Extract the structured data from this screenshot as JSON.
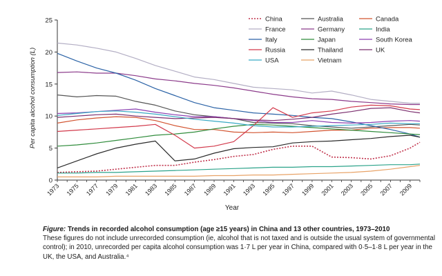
{
  "chart_data": {
    "type": "line",
    "xlabel": "Year",
    "ylabel": "Per capita alcohol consumption (L)",
    "xlim": [
      1973,
      2010
    ],
    "ylim": [
      0,
      25
    ],
    "yticks": [
      0,
      5,
      10,
      15,
      20,
      25
    ],
    "xticks": [
      1973,
      1975,
      1977,
      1979,
      1981,
      1983,
      1985,
      1987,
      1989,
      1991,
      1993,
      1995,
      1997,
      1999,
      2001,
      2003,
      2005,
      2007,
      2009
    ],
    "grid": false,
    "legend_position": "top-right",
    "x": [
      1973,
      1975,
      1977,
      1979,
      1981,
      1983,
      1985,
      1987,
      1989,
      1991,
      1993,
      1995,
      1997,
      1999,
      2001,
      2003,
      2005,
      2007,
      2009,
      2010
    ],
    "series": [
      {
        "name": "China",
        "color": "#c0304a",
        "dash": "2,2",
        "values": [
          1.2,
          1.3,
          1.4,
          1.7,
          2.0,
          2.3,
          2.3,
          2.8,
          3.2,
          3.7,
          4.0,
          4.8,
          5.3,
          5.3,
          3.6,
          3.5,
          3.3,
          3.8,
          5.0,
          5.9
        ]
      },
      {
        "name": "Australia",
        "color": "#555555",
        "values": [
          13.3,
          13.0,
          13.2,
          13.1,
          12.3,
          11.7,
          10.8,
          10.2,
          9.9,
          9.6,
          9.0,
          8.9,
          8.8,
          8.5,
          8.3,
          8.1,
          8.3,
          8.5,
          8.7,
          8.6
        ]
      },
      {
        "name": "Canada",
        "color": "#d2532f",
        "values": [
          8.9,
          9.4,
          9.7,
          9.9,
          9.8,
          9.3,
          8.5,
          7.9,
          7.9,
          7.5,
          7.4,
          7.5,
          7.4,
          7.6,
          7.8,
          7.8,
          8.1,
          8.2,
          8.2,
          8.1
        ]
      },
      {
        "name": "France",
        "color": "#b3aec4",
        "values": [
          21.4,
          21.1,
          20.6,
          20.0,
          19.0,
          17.9,
          17.0,
          16.1,
          15.7,
          15.1,
          14.5,
          14.3,
          14.1,
          13.6,
          13.9,
          13.3,
          12.6,
          12.3,
          12.0,
          12.0
        ]
      },
      {
        "name": "Germany",
        "color": "#8b3a8a",
        "values": [
          16.8,
          16.9,
          16.7,
          16.7,
          16.3,
          15.8,
          15.5,
          15.1,
          14.8,
          14.4,
          13.9,
          13.4,
          13.0,
          12.7,
          12.6,
          12.3,
          12.1,
          11.9,
          11.8,
          11.8
        ]
      },
      {
        "name": "India",
        "color": "#2aa289",
        "values": [
          1.1,
          1.1,
          1.2,
          1.2,
          1.3,
          1.4,
          1.5,
          1.6,
          1.7,
          1.8,
          1.9,
          2.0,
          2.0,
          2.1,
          2.1,
          2.2,
          2.3,
          2.4,
          2.4,
          2.5
        ]
      },
      {
        "name": "Italy",
        "color": "#2a62a6",
        "values": [
          19.8,
          18.6,
          17.5,
          16.7,
          15.6,
          14.3,
          13.2,
          12.1,
          11.3,
          10.9,
          10.5,
          10.3,
          10.1,
          9.8,
          9.6,
          9.1,
          8.5,
          7.9,
          7.2,
          6.7
        ]
      },
      {
        "name": "Japan",
        "color": "#2e8b3a",
        "values": [
          5.3,
          5.5,
          5.8,
          6.2,
          6.6,
          7.0,
          7.2,
          7.5,
          8.0,
          8.4,
          8.7,
          8.6,
          8.4,
          8.2,
          8.0,
          7.8,
          7.6,
          7.4,
          7.2,
          7.1
        ]
      },
      {
        "name": "South Korea",
        "color": "#8a3fb0",
        "values": [
          10.4,
          10.5,
          10.7,
          10.9,
          11.1,
          10.6,
          10.2,
          9.9,
          9.9,
          9.6,
          9.3,
          9.0,
          9.0,
          9.3,
          9.0,
          8.9,
          9.0,
          9.2,
          9.3,
          9.2
        ]
      },
      {
        "name": "Russia",
        "color": "#d2384a",
        "values": [
          7.6,
          7.8,
          8.0,
          8.2,
          8.4,
          8.7,
          7.0,
          5.0,
          5.3,
          6.0,
          8.5,
          11.3,
          9.8,
          10.5,
          10.8,
          11.4,
          11.7,
          11.6,
          11.1,
          11.0
        ]
      },
      {
        "name": "Thailand",
        "color": "#2a2a2a",
        "values": [
          1.9,
          3.0,
          4.1,
          5.0,
          5.6,
          6.1,
          3.0,
          3.3,
          4.2,
          4.9,
          5.1,
          5.2,
          5.8,
          6.0,
          6.1,
          6.3,
          6.5,
          6.8,
          7.0,
          6.7
        ]
      },
      {
        "name": "UK",
        "color": "#7b2e6e",
        "values": [
          9.8,
          10.0,
          10.2,
          10.3,
          10.0,
          9.8,
          9.6,
          9.7,
          9.8,
          9.6,
          9.4,
          9.3,
          9.5,
          9.8,
          10.3,
          10.7,
          11.2,
          11.3,
          10.7,
          10.5
        ]
      },
      {
        "name": "USA",
        "color": "#38a9c4",
        "values": [
          10.1,
          10.4,
          10.7,
          10.8,
          10.6,
          10.3,
          9.9,
          9.5,
          9.2,
          8.9,
          8.5,
          8.3,
          8.3,
          8.4,
          8.5,
          8.6,
          8.7,
          8.9,
          8.8,
          8.8
        ]
      },
      {
        "name": "Vietnam",
        "color": "#e8a266",
        "values": [
          0.5,
          0.5,
          0.5,
          0.6,
          0.6,
          0.6,
          0.6,
          0.6,
          0.7,
          0.7,
          0.8,
          0.8,
          0.9,
          1.0,
          1.1,
          1.2,
          1.4,
          1.7,
          2.1,
          2.3
        ]
      }
    ]
  },
  "caption": {
    "figure_label": "Figure:",
    "title": "Trends in recorded alcohol consumption (age ≥15 years) in China and 13 other countries, 1973–2010",
    "body": "These figures do not include unrecorded consumption (ie, alcohol that is not taxed and is outside the usual system of governmental control); in 2010, unrecorded per capita alcohol consumption was 1·7 L per year in China, compared with 0·5–1·8 L per year in the UK, the USA, and Australia.⁴"
  }
}
